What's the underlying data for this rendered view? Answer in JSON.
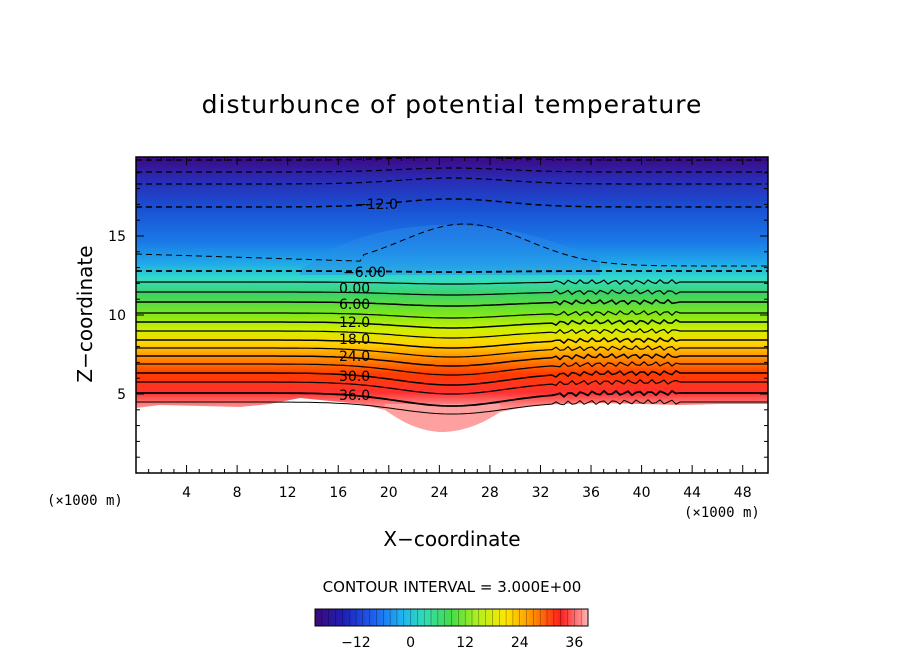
{
  "chart_data": {
    "type": "contour",
    "title": "disturbunce of potential temperature",
    "xlabel": "X−coordinate",
    "ylabel": "Z−coordinate",
    "x_unit": "(×1000 m)",
    "x_unit_right": "(×1000 m)",
    "xlim": [
      0,
      50
    ],
    "ylim": [
      0,
      20
    ],
    "x_ticks": [
      4,
      8,
      12,
      16,
      20,
      24,
      28,
      32,
      36,
      40,
      44,
      48
    ],
    "y_ticks": [
      5,
      10,
      15
    ],
    "contour_interval_text": "CONTOUR INTERVAL = 3.000E+00",
    "contour_interval": 3.0,
    "contour_labels": [
      "−12.0",
      "−6.00",
      "0.00",
      "6.00",
      "12.0",
      "18.0",
      "24.0",
      "30.0",
      "36.0"
    ],
    "field_range": [
      -21,
      39
    ],
    "colorbar": {
      "ticks": [
        -12,
        0,
        12,
        24,
        36
      ],
      "tick_labels": [
        "−12",
        "0",
        "12",
        "24",
        "36"
      ],
      "min": -21,
      "max": 39
    },
    "colorscale": [
      "#4b0082",
      "#1e3cc8",
      "#1e90ff",
      "#40e0d0",
      "#32cd32",
      "#ffff00",
      "#ff8c00",
      "#ff0000",
      "#ffb6c1"
    ]
  }
}
